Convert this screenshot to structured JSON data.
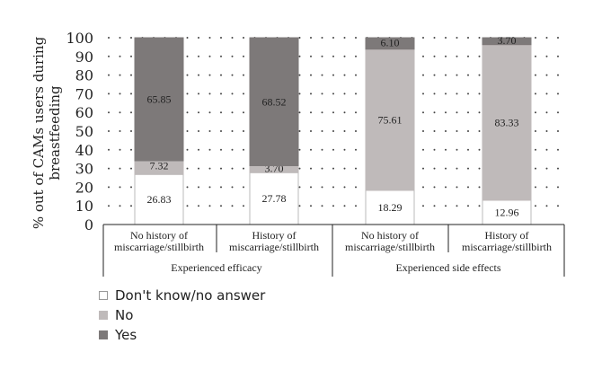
{
  "chart_data": {
    "type": "bar",
    "stacked": true,
    "ylabel": "% out of CAMs users during breastfeeding",
    "ylabel_lines": [
      "% out of CAMs users during",
      "breastfeeding"
    ],
    "ylim": [
      0,
      100
    ],
    "yticks": [
      0,
      10,
      20,
      30,
      40,
      50,
      60,
      70,
      80,
      90,
      100
    ],
    "grid": "dotted",
    "categories": [
      [
        "No history of",
        "miscarriage/stillbirth"
      ],
      [
        "History of",
        "miscarriage/stillbirth"
      ],
      [
        "No history of",
        "miscarriage/stillbirth"
      ],
      [
        "History of",
        "miscarriage/stillbirth"
      ]
    ],
    "groups": [
      {
        "label": "Experienced efficacy",
        "categories": [
          0,
          1
        ]
      },
      {
        "label": "Experienced side effects",
        "categories": [
          2,
          3
        ]
      }
    ],
    "series": [
      {
        "name": "Don't know/no answer",
        "values": [
          26.83,
          27.78,
          18.29,
          12.96
        ],
        "labels": [
          "26.83",
          "27.78",
          "18.29",
          "12.96"
        ],
        "color": "#ffffff",
        "stroke": "#bbbbbb"
      },
      {
        "name": "No",
        "values": [
          7.32,
          3.7,
          75.61,
          83.33
        ],
        "labels": [
          "7.32",
          "3.70",
          "75.61",
          "83.33"
        ],
        "color": "#bfbaba",
        "stroke": "#bfbaba"
      },
      {
        "name": "Yes",
        "values": [
          65.85,
          68.52,
          6.1,
          3.7
        ],
        "labels": [
          "65.85",
          "68.52",
          "6.10",
          "3.70"
        ],
        "color": "#7d7979",
        "stroke": "#7d7979"
      }
    ],
    "legend_position": "bottom-left"
  }
}
